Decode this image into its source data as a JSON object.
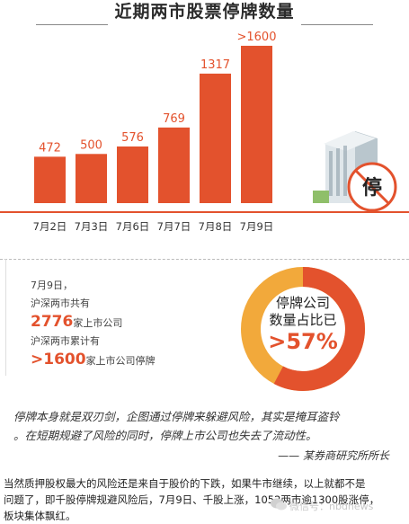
{
  "title": "近期两市股票停牌数量",
  "chart_data": {
    "type": "bar",
    "title": "近期两市股票停牌数量",
    "categories": [
      "7月2日",
      "7月3日",
      "7月6日",
      "7月7日",
      "7月8日",
      "7月9日"
    ],
    "values": [
      472,
      500,
      576,
      769,
      1317,
      1600
    ],
    "labels": [
      "472",
      "500",
      "576",
      "769",
      "1317",
      ">1600"
    ],
    "bar_color": "#e3522d",
    "ylim": [
      0,
      1700
    ]
  },
  "stop_badge": "停",
  "info": {
    "date": "7月9日，",
    "line1": "沪深两市共有",
    "count": "2776",
    "count_suffix": "家上市公司",
    "line2": "沪深两市累计有",
    "suspended": ">1600",
    "suspended_suffix": "家上市公司停牌"
  },
  "donut": {
    "label_line1": "停牌公司",
    "label_line2": "数量占比已",
    "pct_text": ">57%",
    "fraction": 0.577,
    "color_main": "#e3522d",
    "color_rest": "#f2a93b"
  },
  "quote": {
    "line1": "停牌本身就是双刃剑，企图通过停牌来躲避风险，其实是掩耳盗铃",
    "line2": "。在短期规避了风险的同时，停牌上市公司也失去了流动性。",
    "attribution": "—— 某券商研究所所长"
  },
  "footer": {
    "line1": "当然质押股权最大的风险还是来自于股价的下跌，如果牛市继续，以上就都不是",
    "line2": "问题了，即千股停牌规避风险后，7月9日、千股上涨，1052两市逾1300股涨停，",
    "line3": "板块集体飘红。"
  },
  "watermark": "微信号：nbdnews"
}
